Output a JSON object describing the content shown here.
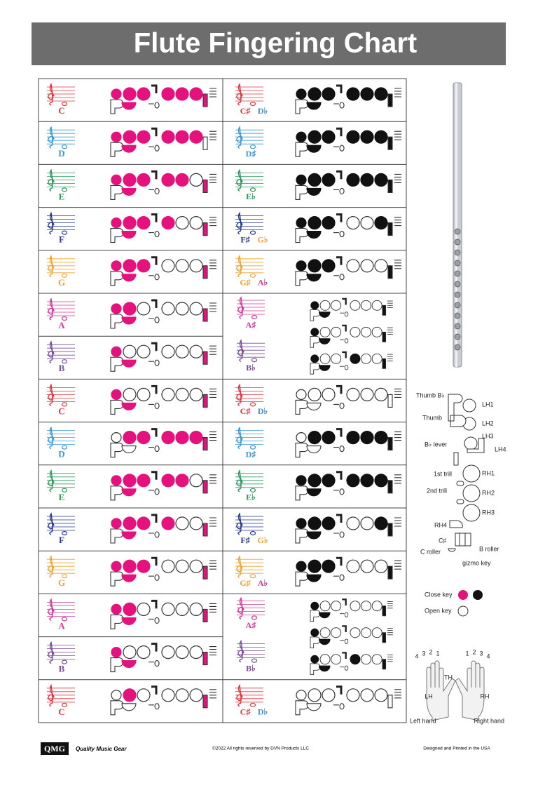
{
  "header": {
    "title": "Flute Fingering Chart"
  },
  "chart": {
    "left_rows": [
      {
        "note": "C",
        "color": "#e2343c"
      },
      {
        "note": "D",
        "color": "#3b98d4"
      },
      {
        "note": "E",
        "color": "#2a9a5c"
      },
      {
        "note": "F",
        "color": "#283a8c"
      },
      {
        "note": "G",
        "color": "#f0a432"
      },
      {
        "note": "A",
        "color": "#d2389c"
      },
      {
        "note": "B",
        "color": "#7b4a9c"
      },
      {
        "note": "C",
        "color": "#e2343c"
      },
      {
        "note": "D",
        "color": "#3b98d4"
      },
      {
        "note": "E",
        "color": "#2a9a5c"
      },
      {
        "note": "F",
        "color": "#283a8c"
      },
      {
        "note": "G",
        "color": "#f0a432"
      },
      {
        "note": "A",
        "color": "#d2389c"
      },
      {
        "note": "B",
        "color": "#7b4a9c"
      },
      {
        "note": "C",
        "color": "#e2343c"
      }
    ],
    "right_rows": [
      {
        "notes": [
          "C♯",
          "D♭"
        ],
        "colors": [
          "#e2343c",
          "#3b98d4"
        ]
      },
      {
        "notes": [
          "D♯"
        ],
        "colors": [
          "#3b98d4"
        ]
      },
      {
        "notes": [
          "E♭"
        ],
        "colors": [
          "#2a9a5c"
        ]
      },
      {
        "notes": [
          "F♯",
          "G♭"
        ],
        "colors": [
          "#283a8c",
          "#f0a432"
        ]
      },
      {
        "notes": [
          "G♯",
          "A♭"
        ],
        "colors": [
          "#f0a432",
          "#d2389c"
        ]
      },
      {
        "notes": [
          "A♯",
          "B♭"
        ],
        "colors": [
          "#d2389c",
          "#7b4a9c"
        ]
      },
      {
        "notes": [
          "C♯",
          "D♭"
        ],
        "colors": [
          "#e2343c",
          "#3b98d4"
        ]
      },
      {
        "notes": [
          "D♯"
        ],
        "colors": [
          "#3b98d4"
        ]
      },
      {
        "notes": [
          "E♭"
        ],
        "colors": [
          "#2a9a5c"
        ]
      },
      {
        "notes": [
          "F♯",
          "G♭"
        ],
        "colors": [
          "#283a8c",
          "#f0a432"
        ]
      },
      {
        "notes": [
          "G♯",
          "A♭"
        ],
        "colors": [
          "#f0a432",
          "#d2389c"
        ]
      },
      {
        "notes": [
          "A♯",
          "B♭"
        ],
        "colors": [
          "#d2389c",
          "#7b4a9c"
        ]
      },
      {
        "notes": [
          "C♯",
          "D♭"
        ],
        "colors": [
          "#e2343c",
          "#3b98d4"
        ]
      }
    ]
  },
  "key_diagram": {
    "labels": [
      "Thumb B♭",
      "LH1",
      "Thumb",
      "LH2",
      "LH3",
      "LH4",
      "B♭ lever",
      "1st trill",
      "RH1",
      "2nd trill",
      "RH2",
      "RH3",
      "RH4",
      "C♯",
      "B roller",
      "C roller",
      "gizmo key"
    ]
  },
  "legend": {
    "closed": "Close key",
    "open": "Open key",
    "colors": [
      "#e5127d",
      "#111111"
    ]
  },
  "hands": {
    "left": "LH",
    "right": "RH",
    "thumb": "TH",
    "left_fingers": [
      "4",
      "3",
      "2",
      "1"
    ],
    "right_fingers": [
      "1",
      "2",
      "3",
      "4"
    ],
    "left_caption": "Left hand",
    "right_caption": "Right hand"
  },
  "footer": {
    "logo": "QMG",
    "brand": "Quality Music Gear",
    "copyright": "©2022 All rights reserved by DVN Products LLC",
    "made": "Designed and Printed in the USA"
  }
}
